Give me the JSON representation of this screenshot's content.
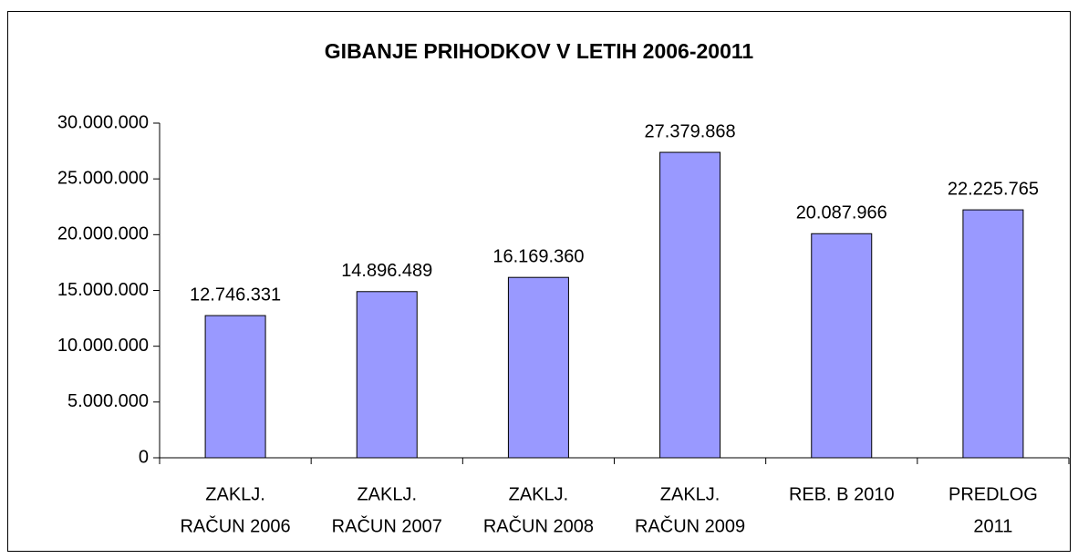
{
  "chart_data": {
    "type": "bar",
    "title": "GIBANJE PRIHODKOV V LETIH 2006-20011",
    "categories": [
      [
        "ZAKLJ.",
        "RAČUN 2006"
      ],
      [
        "ZAKLJ.",
        "RAČUN 2007"
      ],
      [
        "ZAKLJ.",
        "RAČUN 2008"
      ],
      [
        "ZAKLJ.",
        "RAČUN 2009"
      ],
      [
        "REB. B 2010"
      ],
      [
        "PREDLOG",
        "2011"
      ]
    ],
    "values": [
      12746331,
      14896489,
      16169360,
      27379868,
      20087966,
      22225765
    ],
    "value_labels": [
      "12.746.331",
      "14.896.489",
      "16.169.360",
      "27.379.868",
      "20.087.966",
      "22.225.765"
    ],
    "color": "#9999ff",
    "ylim": [
      0,
      30000000
    ],
    "yticks": [
      0,
      {
        "value": 5000000,
        "label": "5.000.000"
      },
      {
        "value": 10000000,
        "label": "10.000.000"
      },
      {
        "value": 15000000,
        "label": "15.000.000"
      },
      {
        "value": 20000000,
        "label": "20.000.000"
      },
      {
        "value": 25000000,
        "label": "25.000.000"
      },
      {
        "value": 30000000,
        "label": "30.000.000"
      }
    ],
    "grid": false
  }
}
